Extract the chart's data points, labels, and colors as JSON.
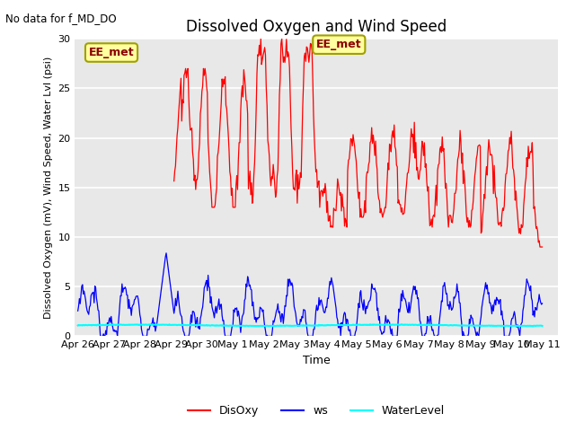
{
  "title": "Dissolved Oxygen and Wind Speed",
  "subtitle": "No data for f_MD_DO",
  "xlabel": "Time",
  "ylabel": "Dissolved Oxygen (mV), Wind Speed, Water Lvl (psi)",
  "ylim": [
    0,
    30
  ],
  "background_color": "#e8e8e8",
  "grid_color": "white",
  "annotation_text": "EE_met",
  "disoxy_color": "red",
  "ws_color": "blue",
  "waterlevel_color": "cyan",
  "tick_labels": [
    "Apr 26",
    "Apr 27",
    "Apr 28",
    "Apr 29",
    "Apr 30",
    "May 1",
    "May 2",
    "May 3",
    "May 4",
    "May 5",
    "May 6",
    "May 7",
    "May 8",
    "May 9",
    "May 10",
    "May 11"
  ],
  "tick_positions": [
    0,
    1,
    2,
    3,
    4,
    5,
    6,
    7,
    8,
    9,
    10,
    11,
    12,
    13,
    14,
    15
  ],
  "yticks": [
    0,
    5,
    10,
    15,
    20,
    25,
    30
  ],
  "title_fontsize": 12,
  "label_fontsize": 8,
  "tick_fontsize": 8
}
